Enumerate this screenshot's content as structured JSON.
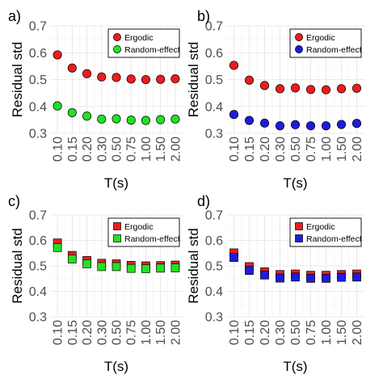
{
  "chart_data": [
    {
      "panel": "a)",
      "type": "scatter",
      "marker": "circle",
      "ylabel": "Residual std",
      "xlabel": "T(s)",
      "ylim": [
        0.3,
        0.7
      ],
      "yticks": [
        "0.3",
        "0.4",
        "0.5",
        "0.6",
        "0.7"
      ],
      "categories": [
        "0.10",
        "0.15",
        "0.20",
        "0.30",
        "0.50",
        "0.75",
        "1.00",
        "1.50",
        "2.00"
      ],
      "grid": true,
      "legend_position": "top-right",
      "series": [
        {
          "name": "Ergodic",
          "color": "#ee1c1c",
          "values": [
            0.592,
            0.543,
            0.522,
            0.51,
            0.508,
            0.502,
            0.5,
            0.501,
            0.503
          ]
        },
        {
          "name": "Random-effect",
          "color": "#22e122",
          "values": [
            0.402,
            0.377,
            0.364,
            0.353,
            0.354,
            0.349,
            0.348,
            0.351,
            0.353
          ]
        }
      ]
    },
    {
      "panel": "b)",
      "type": "scatter",
      "marker": "circle",
      "ylabel": "Residual std",
      "xlabel": "T(s)",
      "ylim": [
        0.3,
        0.7
      ],
      "yticks": [
        "0.3",
        "0.4",
        "0.5",
        "0.6",
        "0.7"
      ],
      "categories": [
        "0.10",
        "0.15",
        "0.20",
        "0.30",
        "0.50",
        "0.75",
        "1.00",
        "1.50",
        "2.00"
      ],
      "grid": true,
      "legend_position": "top-right",
      "series": [
        {
          "name": "Ergodic",
          "color": "#ee1c1c",
          "values": [
            0.553,
            0.498,
            0.478,
            0.466,
            0.469,
            0.463,
            0.462,
            0.466,
            0.468
          ]
        },
        {
          "name": "Random-effect",
          "color": "#1c1cdd",
          "values": [
            0.37,
            0.348,
            0.338,
            0.328,
            0.332,
            0.328,
            0.328,
            0.333,
            0.337
          ]
        }
      ]
    },
    {
      "panel": "c)",
      "type": "scatter",
      "marker": "square",
      "ylabel": "Residual std",
      "xlabel": "T(s)",
      "ylim": [
        0.3,
        0.7
      ],
      "yticks": [
        "0.3",
        "0.4",
        "0.5",
        "0.6",
        "0.7"
      ],
      "categories": [
        "0.10",
        "0.15",
        "0.20",
        "0.30",
        "0.50",
        "0.75",
        "1.00",
        "1.50",
        "2.00"
      ],
      "grid": true,
      "legend_position": "top-right",
      "series": [
        {
          "name": "Ergodic",
          "color": "#ee1c1c",
          "values": [
            0.59,
            0.541,
            0.521,
            0.51,
            0.508,
            0.502,
            0.5,
            0.501,
            0.503
          ]
        },
        {
          "name": "Random-effect",
          "color": "#22e122",
          "values": [
            0.572,
            0.527,
            0.508,
            0.497,
            0.497,
            0.49,
            0.489,
            0.491,
            0.492
          ]
        }
      ]
    },
    {
      "panel": "d)",
      "type": "scatter",
      "marker": "square",
      "ylabel": "Residual std",
      "xlabel": "T(s)",
      "ylim": [
        0.3,
        0.7
      ],
      "yticks": [
        "0.3",
        "0.4",
        "0.5",
        "0.6",
        "0.7"
      ],
      "categories": [
        "0.10",
        "0.15",
        "0.20",
        "0.30",
        "0.50",
        "0.75",
        "1.00",
        "1.50",
        "2.00"
      ],
      "grid": true,
      "legend_position": "top-right",
      "series": [
        {
          "name": "Ergodic",
          "color": "#ee1c1c",
          "values": [
            0.551,
            0.497,
            0.477,
            0.466,
            0.468,
            0.463,
            0.463,
            0.466,
            0.468
          ]
        },
        {
          "name": "Random-effect",
          "color": "#1c1cdd",
          "values": [
            0.533,
            0.482,
            0.464,
            0.452,
            0.456,
            0.451,
            0.451,
            0.455,
            0.456
          ]
        }
      ]
    }
  ]
}
